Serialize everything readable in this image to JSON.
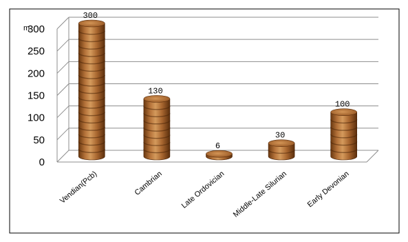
{
  "chart_data": {
    "type": "bar",
    "style": "3d-cylinder",
    "categories": [
      "Vendian(Pcb)",
      "Cambrian",
      "Late Ordovician",
      "Middle-Late Silurian",
      "Early Devonian"
    ],
    "values": [
      300,
      130,
      6,
      30,
      100
    ],
    "data_labels": [
      "300",
      "130",
      "6",
      "30",
      "100"
    ],
    "title": "",
    "xlabel": "",
    "ylabel": "m",
    "ylim": [
      0,
      300
    ],
    "yticks": [
      "0",
      "50",
      "100",
      "150",
      "200",
      "250",
      "300"
    ],
    "grid": true,
    "legend": "none",
    "colors": {
      "bar_light": "#c98a4c",
      "bar_mid": "#a8662f",
      "bar_dark": "#6a3810",
      "bar_stripe": "#4a2408",
      "bar_top": "#b8773a",
      "grid": "#8c8c8c",
      "frame": "#000000"
    }
  }
}
